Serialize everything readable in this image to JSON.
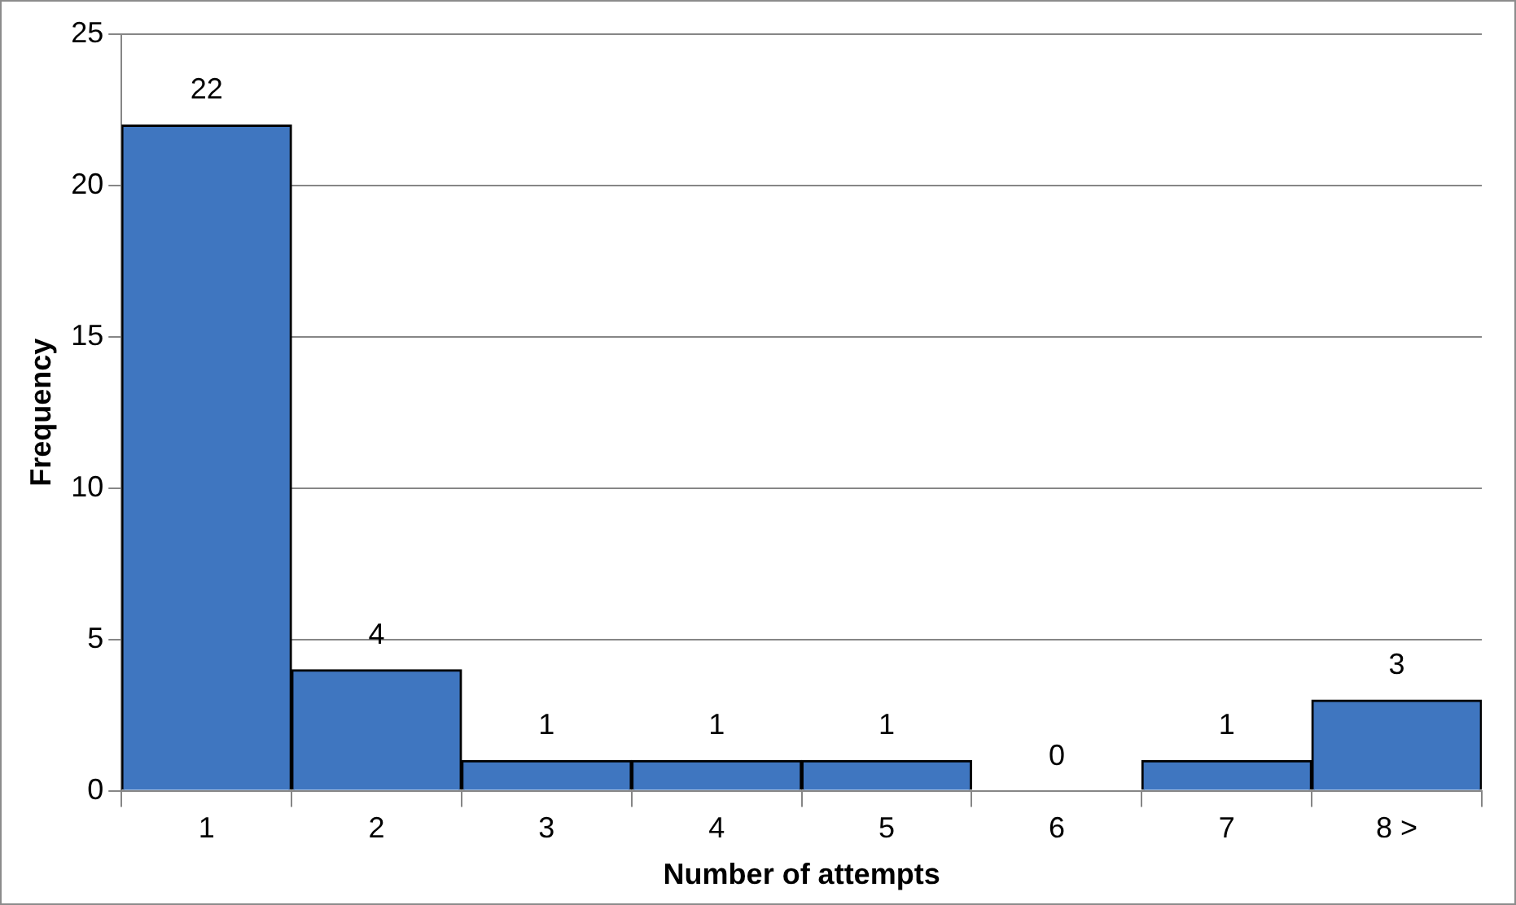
{
  "chart_data": {
    "type": "bar",
    "xlabel": "Number of attempts",
    "ylabel": "Frequency",
    "categories": [
      "1",
      "2",
      "3",
      "4",
      "5",
      "6",
      "7",
      "8 >"
    ],
    "values": [
      22,
      4,
      1,
      1,
      1,
      0,
      1,
      3
    ],
    "color": "#3f76c0",
    "ylim": [
      0,
      25
    ],
    "yticks": [
      0,
      5,
      10,
      15,
      20,
      25
    ],
    "grid": "y",
    "data_labels": true
  }
}
